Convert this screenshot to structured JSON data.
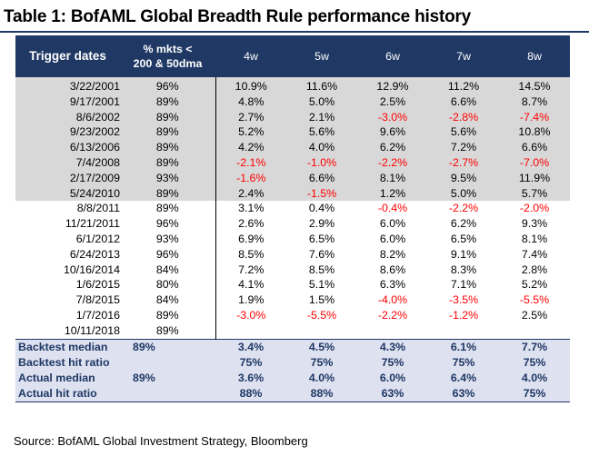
{
  "title": "Table 1: BofAML Global Breadth Rule performance history",
  "table": {
    "headers": {
      "trigger": "Trigger dates",
      "pct_line1": "% mkts <",
      "pct_line2": "200 & 50dma",
      "weeks": [
        "4w",
        "5w",
        "6w",
        "7w",
        "8w"
      ]
    },
    "rows": [
      {
        "date": "3/22/2001",
        "pct": "96%",
        "vals": [
          "10.9%",
          "11.6%",
          "12.9%",
          "11.2%",
          "14.5%"
        ],
        "shade": "grey"
      },
      {
        "date": "9/17/2001",
        "pct": "89%",
        "vals": [
          "4.8%",
          "5.0%",
          "2.5%",
          "6.6%",
          "8.7%"
        ],
        "shade": "grey"
      },
      {
        "date": "8/6/2002",
        "pct": "89%",
        "vals": [
          "2.7%",
          "2.1%",
          "-3.0%",
          "-2.8%",
          "-7.4%"
        ],
        "shade": "grey"
      },
      {
        "date": "9/23/2002",
        "pct": "89%",
        "vals": [
          "5.2%",
          "5.6%",
          "9.6%",
          "5.6%",
          "10.8%"
        ],
        "shade": "grey"
      },
      {
        "date": "6/13/2006",
        "pct": "89%",
        "vals": [
          "4.2%",
          "4.0%",
          "6.2%",
          "7.2%",
          "6.6%"
        ],
        "shade": "grey"
      },
      {
        "date": "7/4/2008",
        "pct": "89%",
        "vals": [
          "-2.1%",
          "-1.0%",
          "-2.2%",
          "-2.7%",
          "-7.0%"
        ],
        "shade": "grey"
      },
      {
        "date": "2/17/2009",
        "pct": "93%",
        "vals": [
          "-1.6%",
          "6.6%",
          "8.1%",
          "9.5%",
          "11.9%"
        ],
        "shade": "grey"
      },
      {
        "date": "5/24/2010",
        "pct": "89%",
        "vals": [
          "2.4%",
          "-1.5%",
          "1.2%",
          "5.0%",
          "5.7%"
        ],
        "shade": "grey"
      },
      {
        "date": "8/8/2011",
        "pct": "89%",
        "vals": [
          "3.1%",
          "0.4%",
          "-0.4%",
          "-2.2%",
          "-2.0%"
        ],
        "shade": "white"
      },
      {
        "date": "11/21/2011",
        "pct": "96%",
        "vals": [
          "2.6%",
          "2.9%",
          "6.0%",
          "6.2%",
          "9.3%"
        ],
        "shade": "white"
      },
      {
        "date": "6/1/2012",
        "pct": "93%",
        "vals": [
          "6.9%",
          "6.5%",
          "6.0%",
          "6.5%",
          "8.1%"
        ],
        "shade": "white"
      },
      {
        "date": "6/24/2013",
        "pct": "96%",
        "vals": [
          "8.5%",
          "7.6%",
          "8.2%",
          "9.1%",
          "7.4%"
        ],
        "shade": "white"
      },
      {
        "date": "10/16/2014",
        "pct": "84%",
        "vals": [
          "7.2%",
          "8.5%",
          "8.6%",
          "8.3%",
          "2.8%"
        ],
        "shade": "white"
      },
      {
        "date": "1/6/2015",
        "pct": "80%",
        "vals": [
          "4.1%",
          "5.1%",
          "6.3%",
          "7.1%",
          "5.2%"
        ],
        "shade": "white"
      },
      {
        "date": "7/8/2015",
        "pct": "84%",
        "vals": [
          "1.9%",
          "1.5%",
          "-4.0%",
          "-3.5%",
          "-5.5%"
        ],
        "shade": "white"
      },
      {
        "date": "1/7/2016",
        "pct": "89%",
        "vals": [
          "-3.0%",
          "-5.5%",
          "-2.2%",
          "-1.2%",
          "2.5%"
        ],
        "shade": "white"
      },
      {
        "date": "10/11/2018",
        "pct": "89%",
        "vals": [
          "",
          "",
          "",
          "",
          ""
        ],
        "shade": "white"
      }
    ],
    "summary": [
      {
        "label": "Backtest median",
        "pct": "89%",
        "vals": [
          "3.4%",
          "4.5%",
          "4.3%",
          "6.1%",
          "7.7%"
        ]
      },
      {
        "label": "Backtest hit ratio",
        "pct": "",
        "vals": [
          "75%",
          "75%",
          "75%",
          "75%",
          "75%"
        ]
      },
      {
        "label": "Actual median",
        "pct": "89%",
        "vals": [
          "3.6%",
          "4.0%",
          "6.0%",
          "6.4%",
          "4.0%"
        ]
      },
      {
        "label": "Actual hit ratio",
        "pct": "",
        "vals": [
          "88%",
          "88%",
          "63%",
          "63%",
          "75%"
        ]
      }
    ]
  },
  "source": "Source:  BofAML Global Investment Strategy, Bloomberg",
  "colors": {
    "header_bg": "#1f3864",
    "grey_rows": "#d8d8d8",
    "summary_bg": "#dde1f0",
    "negative": "#ff0000"
  }
}
